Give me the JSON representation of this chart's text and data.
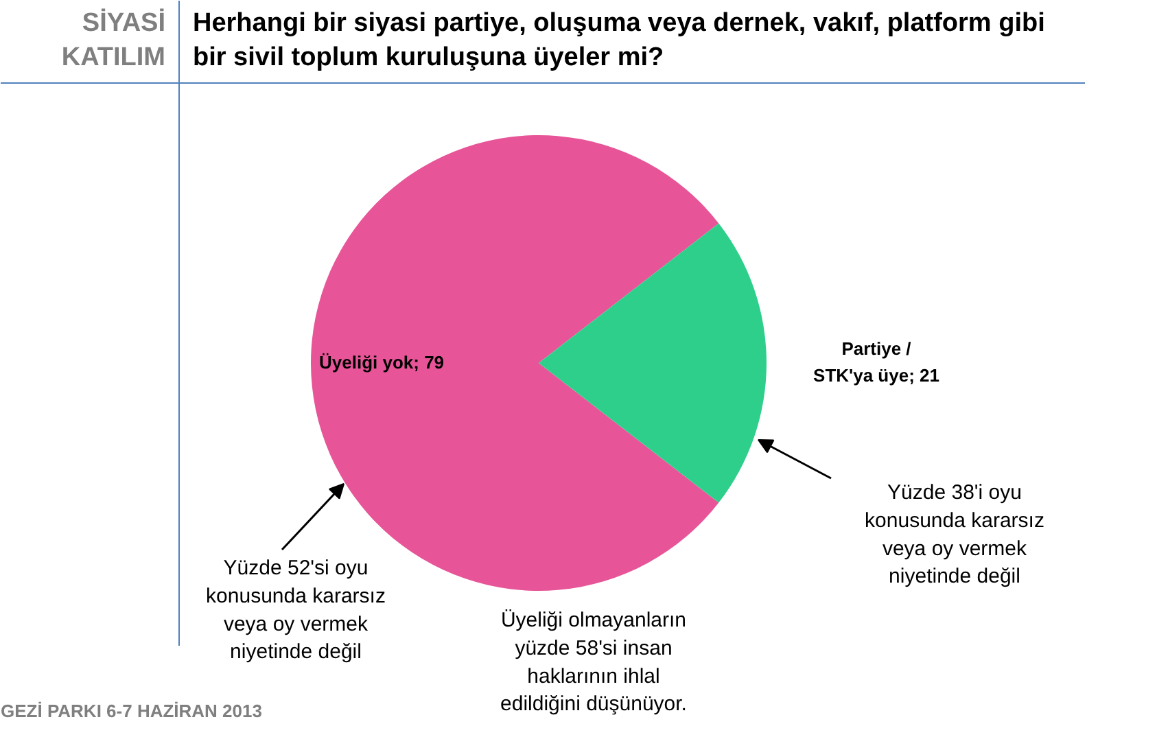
{
  "chart_data": {
    "type": "pie",
    "title": "Herhangi bir siyasi partiye, oluşuma veya dernek, vakıf, platform gibi bir sivil toplum kuruluşuna üyeler mi?",
    "subtitle": "SİYASİ KATILIM",
    "categories": [
      null,
      null
    ],
    "values": [
      79,
      21
    ],
    "value_labels": [
      "Üyeliği yok; 79",
      "Partiye / STK'ya üye; 21"
    ],
    "colors": [
      "#e75598",
      "#2ecf8a"
    ],
    "annotations": [
      "Yüzde 52'si oyu konusunda kararsız veya oy vermek niyetinde değil",
      "Yüzde 38'i oyu konusunda kararsız veya oy vermek niyetinde değil",
      "Üyeliği olmayanların yüzde 58'si insan haklarının ihlal edildiğini düşünüyor.",
      "GEZİ PARKI 6-7 HAZİRAN 2013"
    ]
  }
}
